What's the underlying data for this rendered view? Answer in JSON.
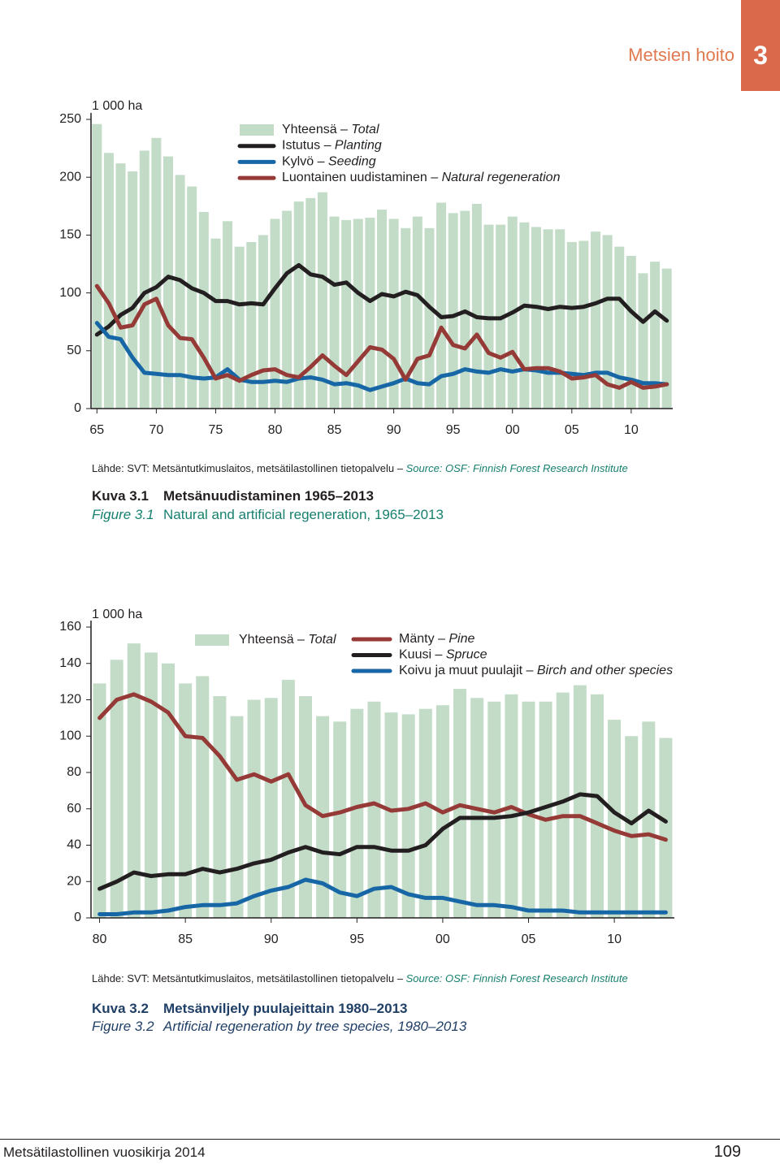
{
  "header": {
    "section": "Metsien hoito",
    "number": "3"
  },
  "chart_data": [
    {
      "type": "combo",
      "unit_label": "1 000 ha",
      "x": [
        1965,
        1966,
        1967,
        1968,
        1969,
        1970,
        1971,
        1972,
        1973,
        1974,
        1975,
        1976,
        1977,
        1978,
        1979,
        1980,
        1981,
        1982,
        1983,
        1984,
        1985,
        1986,
        1987,
        1988,
        1989,
        1990,
        1991,
        1992,
        1993,
        1994,
        1995,
        1996,
        1997,
        1998,
        1999,
        2000,
        2001,
        2002,
        2003,
        2004,
        2005,
        2006,
        2007,
        2008,
        2009,
        2010,
        2011,
        2012,
        2013
      ],
      "series": [
        {
          "name": "Yhteensä – Total",
          "type": "bar",
          "color": "#c3dcc8",
          "values": [
            246,
            221,
            212,
            205,
            223,
            234,
            218,
            202,
            192,
            170,
            147,
            162,
            140,
            144,
            150,
            164,
            171,
            179,
            182,
            187,
            166,
            163,
            164,
            165,
            172,
            164,
            156,
            166,
            156,
            178,
            169,
            171,
            177,
            159,
            159,
            166,
            161,
            157,
            155,
            155,
            144,
            145,
            153,
            150,
            140,
            132,
            117,
            127,
            121
          ]
        },
        {
          "name": "Istutus – Planting",
          "type": "line",
          "color": "#231f20",
          "values": [
            64,
            71,
            81,
            87,
            100,
            105,
            114,
            111,
            104,
            100,
            93,
            93,
            90,
            91,
            90,
            104,
            117,
            124,
            116,
            114,
            107,
            109,
            100,
            93,
            99,
            97,
            101,
            98,
            88,
            79,
            80,
            84,
            79,
            78,
            78,
            83,
            89,
            88,
            86,
            88,
            87,
            88,
            91,
            95,
            95,
            84,
            75,
            84,
            76
          ]
        },
        {
          "name": "Kylvö – Seeding",
          "type": "line",
          "color": "#1766a6",
          "values": [
            74,
            62,
            60,
            44,
            31,
            30,
            29,
            29,
            27,
            26,
            27,
            34,
            25,
            23,
            23,
            24,
            23,
            26,
            27,
            25,
            21,
            22,
            20,
            16,
            19,
            22,
            26,
            22,
            21,
            28,
            30,
            34,
            32,
            31,
            34,
            32,
            34,
            33,
            31,
            31,
            30,
            29,
            31,
            31,
            27,
            25,
            22,
            22,
            21
          ]
        },
        {
          "name": "Luontainen uudistaminen – Natural regeneration",
          "type": "line",
          "color": "#953a36",
          "values": [
            106,
            91,
            70,
            72,
            90,
            95,
            72,
            61,
            60,
            44,
            26,
            29,
            24,
            29,
            33,
            34,
            29,
            27,
            36,
            46,
            37,
            29,
            41,
            53,
            51,
            43,
            25,
            43,
            46,
            70,
            55,
            52,
            64,
            48,
            44,
            49,
            34,
            35,
            35,
            32,
            26,
            27,
            29,
            21,
            18,
            23,
            18,
            19,
            21
          ]
        }
      ],
      "xlim": [
        1964.5,
        2013.5
      ],
      "xticks": [
        {
          "value": 1965,
          "label": "65"
        },
        {
          "value": 1970,
          "label": "70"
        },
        {
          "value": 1975,
          "label": "75"
        },
        {
          "value": 1980,
          "label": "80"
        },
        {
          "value": 1985,
          "label": "85"
        },
        {
          "value": 1990,
          "label": "90"
        },
        {
          "value": 1995,
          "label": "95"
        },
        {
          "value": 2000,
          "label": "00"
        },
        {
          "value": 2005,
          "label": "05"
        },
        {
          "value": 2010,
          "label": "10"
        }
      ],
      "ylim": [
        0,
        250
      ],
      "yticks": [
        0,
        50,
        100,
        150,
        200,
        250
      ],
      "source": "Lähde: SVT: Metsäntutkimuslaitos, metsätilastollinen tietopalvelu –",
      "source_en": "Source: OSF: Finnish Forest Research Institute",
      "caption": {
        "label": "Kuva 3.1",
        "title": "Metsänuudistaminen 1965–2013",
        "label_en": "Figure 3.1",
        "title_en": "Natural and artificial regeneration, 1965–2013"
      }
    },
    {
      "type": "combo",
      "unit_label": "1 000 ha",
      "x": [
        1980,
        1981,
        1982,
        1983,
        1984,
        1985,
        1986,
        1987,
        1988,
        1989,
        1990,
        1991,
        1992,
        1993,
        1994,
        1995,
        1996,
        1997,
        1998,
        1999,
        2000,
        2001,
        2002,
        2003,
        2004,
        2005,
        2006,
        2007,
        2008,
        2009,
        2010,
        2011,
        2012,
        2013
      ],
      "series": [
        {
          "name": "Yhteensä – Total",
          "type": "bar",
          "color": "#c3dcc8",
          "values": [
            129,
            142,
            151,
            146,
            140,
            129,
            133,
            122,
            111,
            120,
            121,
            131,
            122,
            111,
            108,
            115,
            119,
            113,
            112,
            115,
            117,
            126,
            121,
            119,
            123,
            119,
            119,
            124,
            128,
            123,
            109,
            100,
            108,
            99
          ]
        },
        {
          "name": "Mänty – Pine",
          "type": "line",
          "color": "#953a36",
          "values": [
            110,
            120,
            123,
            119,
            113,
            100,
            99,
            89,
            76,
            79,
            75,
            79,
            62,
            56,
            58,
            61,
            63,
            59,
            60,
            63,
            58,
            62,
            60,
            58,
            61,
            57,
            54,
            56,
            56,
            52,
            48,
            45,
            46,
            43
          ]
        },
        {
          "name": "Kuusi – Spruce",
          "type": "line",
          "color": "#231f20",
          "values": [
            16,
            20,
            25,
            23,
            24,
            24,
            27,
            25,
            27,
            30,
            32,
            36,
            39,
            36,
            35,
            39,
            39,
            37,
            37,
            40,
            49,
            55,
            55,
            55,
            56,
            58,
            61,
            64,
            68,
            67,
            58,
            52,
            59,
            53
          ]
        },
        {
          "name": "Koivu ja muut puulajit – Birch and other species",
          "type": "line",
          "color": "#1766a6",
          "values": [
            2,
            2,
            3,
            3,
            4,
            6,
            7,
            7,
            8,
            12,
            15,
            17,
            21,
            19,
            14,
            12,
            16,
            17,
            13,
            11,
            11,
            9,
            7,
            7,
            6,
            4,
            4,
            4,
            3,
            3,
            3,
            3,
            3,
            3
          ]
        }
      ],
      "xlim": [
        1979.5,
        2013.5
      ],
      "xticks": [
        {
          "value": 1980,
          "label": "80"
        },
        {
          "value": 1985,
          "label": "85"
        },
        {
          "value": 1990,
          "label": "90"
        },
        {
          "value": 1995,
          "label": "95"
        },
        {
          "value": 2000,
          "label": "00"
        },
        {
          "value": 2005,
          "label": "05"
        },
        {
          "value": 2010,
          "label": "10"
        }
      ],
      "ylim": [
        0,
        160
      ],
      "yticks": [
        0,
        20,
        40,
        60,
        80,
        100,
        120,
        140,
        160
      ],
      "source": "Lähde: SVT: Metsäntutkimuslaitos, metsätilastollinen tietopalvelu –",
      "source_en": "Source: OSF: Finnish Forest Research Institute",
      "caption": {
        "label": "Kuva 3.2",
        "title": "Metsänviljely puulajeittain 1980–2013",
        "label_en": "Figure 3.2",
        "title_en": "Artificial regeneration by tree species, 1980–2013"
      }
    }
  ],
  "footer": {
    "publication": "Metsätilastollinen vuosikirja 2014",
    "page": "109"
  }
}
